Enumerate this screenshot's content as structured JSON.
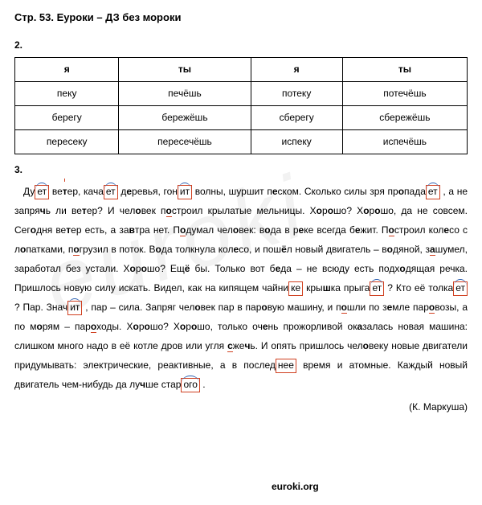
{
  "header": "Стр. 53. Еуроки – ДЗ без мороки",
  "section2": {
    "num": "2.",
    "headers": [
      "я",
      "ты",
      "я",
      "ты"
    ],
    "rows": [
      [
        "пеку",
        "печёшь",
        "потеку",
        "потечёшь"
      ],
      [
        "берегу",
        "бережёшь",
        "сберегу",
        "сбережёшь"
      ],
      [
        "пересеку",
        "пересечёшь",
        "испеку",
        "испечёшь"
      ]
    ]
  },
  "section3": {
    "num": "3."
  },
  "euroki": "euroki.org",
  "author": "(К. Маркуша)",
  "watermark": "euroki",
  "colors": {
    "arc": "#2a5fb0",
    "redbox": "#d04020",
    "text": "#000000",
    "bg": "#ffffff"
  }
}
